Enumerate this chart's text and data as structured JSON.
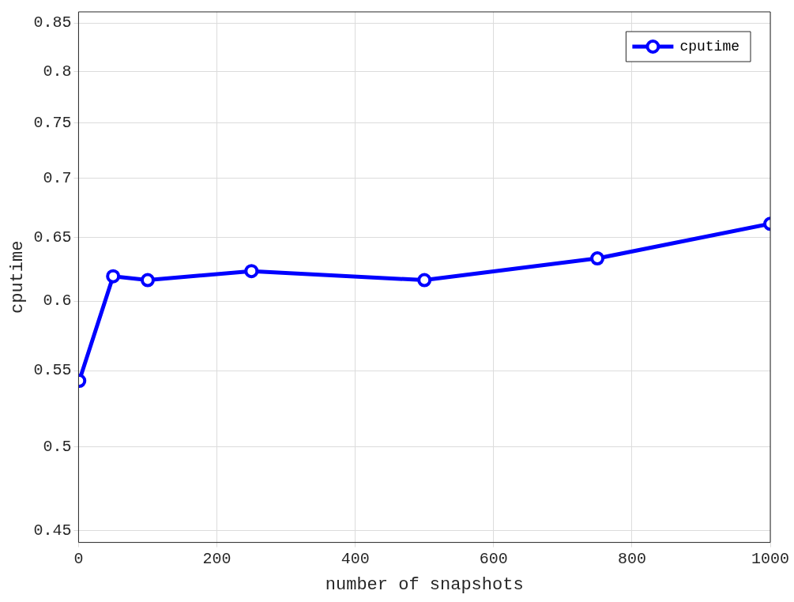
{
  "chart_data": {
    "type": "line",
    "xlabel": "number of snapshots",
    "ylabel": "cputime",
    "x": [
      1,
      50,
      100,
      250,
      500,
      750,
      1000
    ],
    "series": [
      {
        "name": "cputime",
        "color": "#0000ff",
        "values": [
          0.543,
          0.619,
          0.616,
          0.623,
          0.616,
          0.633,
          0.661
        ]
      }
    ],
    "xlim": [
      0,
      1000
    ],
    "xticks": [
      0,
      200,
      400,
      600,
      800,
      1000
    ],
    "ylim": [
      0.4435,
      0.862
    ],
    "yticks": [
      0.45,
      0.5,
      0.55,
      0.6,
      0.65,
      0.7,
      0.75,
      0.8,
      0.85
    ],
    "log": "y",
    "grid": true,
    "legend": "top right",
    "marker": "circle",
    "line_style": "solid"
  }
}
